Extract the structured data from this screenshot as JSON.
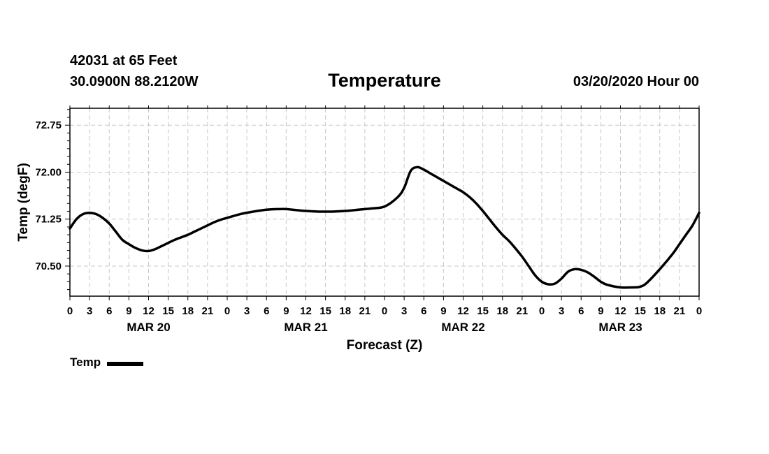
{
  "header": {
    "station": "42031 at 65 Feet",
    "location": "30.0900N 88.2120W",
    "title": "Temperature",
    "datetime": "03/20/2020 Hour 00"
  },
  "chart_data": {
    "type": "line",
    "title": "Temperature",
    "xlabel": "Forecast (Z)",
    "ylabel": "Temp (degF)",
    "x_unit": "hours",
    "x_range": [
      0,
      96
    ],
    "ylim": [
      70.02,
      73.02
    ],
    "yticks": [
      70.5,
      71.25,
      72.0,
      72.75
    ],
    "ytick_labels": [
      "70.50",
      "71.25",
      "72.00",
      "72.75"
    ],
    "xtick_hours": [
      0,
      3,
      6,
      9,
      12,
      15,
      18,
      21,
      24,
      27,
      30,
      33,
      36,
      39,
      42,
      45,
      48,
      51,
      54,
      57,
      60,
      63,
      66,
      69,
      72,
      75,
      78,
      81,
      84,
      87,
      90,
      93,
      96
    ],
    "xtick_labels": [
      "0",
      "3",
      "6",
      "9",
      "12",
      "15",
      "18",
      "21",
      "0",
      "3",
      "6",
      "9",
      "12",
      "15",
      "18",
      "21",
      "0",
      "3",
      "6",
      "9",
      "12",
      "15",
      "18",
      "21",
      "0",
      "3",
      "6",
      "9",
      "12",
      "15",
      "18",
      "21",
      "0"
    ],
    "day_labels": [
      {
        "label": "MAR 20",
        "hour": 12
      },
      {
        "label": "MAR 21",
        "hour": 36
      },
      {
        "label": "MAR 22",
        "hour": 60
      },
      {
        "label": "MAR 23",
        "hour": 84
      }
    ],
    "grid": true,
    "legend": "bottom-left",
    "series": [
      {
        "name": "Temp",
        "color": "#000000",
        "x": [
          0,
          1,
          2,
          3,
          4,
          5,
          6,
          7,
          8,
          9,
          10,
          11,
          12,
          13,
          14,
          15,
          16,
          17,
          18,
          19,
          20,
          21,
          22,
          23,
          24,
          26,
          28,
          30,
          32,
          33,
          34,
          36,
          38,
          39,
          40,
          42,
          44,
          45,
          46,
          48,
          50,
          51,
          52,
          53,
          54,
          55,
          56,
          57,
          58,
          59,
          60,
          61,
          62,
          63,
          64,
          65,
          66,
          67,
          68,
          69,
          70,
          71,
          72,
          73,
          74,
          75,
          76,
          77,
          78,
          79,
          80,
          81,
          82,
          84,
          86,
          87,
          88,
          90,
          92,
          93,
          94,
          95,
          96
        ],
        "y": [
          71.1,
          71.25,
          71.33,
          71.35,
          71.33,
          71.27,
          71.18,
          71.05,
          70.92,
          70.85,
          70.79,
          70.75,
          70.74,
          70.77,
          70.82,
          70.87,
          70.92,
          70.96,
          71.0,
          71.05,
          71.1,
          71.15,
          71.2,
          71.24,
          71.27,
          71.33,
          71.37,
          71.4,
          71.41,
          71.41,
          71.4,
          71.38,
          71.37,
          71.37,
          71.37,
          71.38,
          71.4,
          71.41,
          71.42,
          71.45,
          71.6,
          71.75,
          72.02,
          72.08,
          72.04,
          71.98,
          71.92,
          71.86,
          71.8,
          71.74,
          71.68,
          71.6,
          71.5,
          71.38,
          71.25,
          71.12,
          71.0,
          70.9,
          70.78,
          70.65,
          70.5,
          70.35,
          70.25,
          70.21,
          70.22,
          70.3,
          70.41,
          70.45,
          70.44,
          70.4,
          70.33,
          70.25,
          70.2,
          70.16,
          70.16,
          70.17,
          70.23,
          70.45,
          70.7,
          70.85,
          71.0,
          71.15,
          71.35
        ]
      }
    ]
  }
}
